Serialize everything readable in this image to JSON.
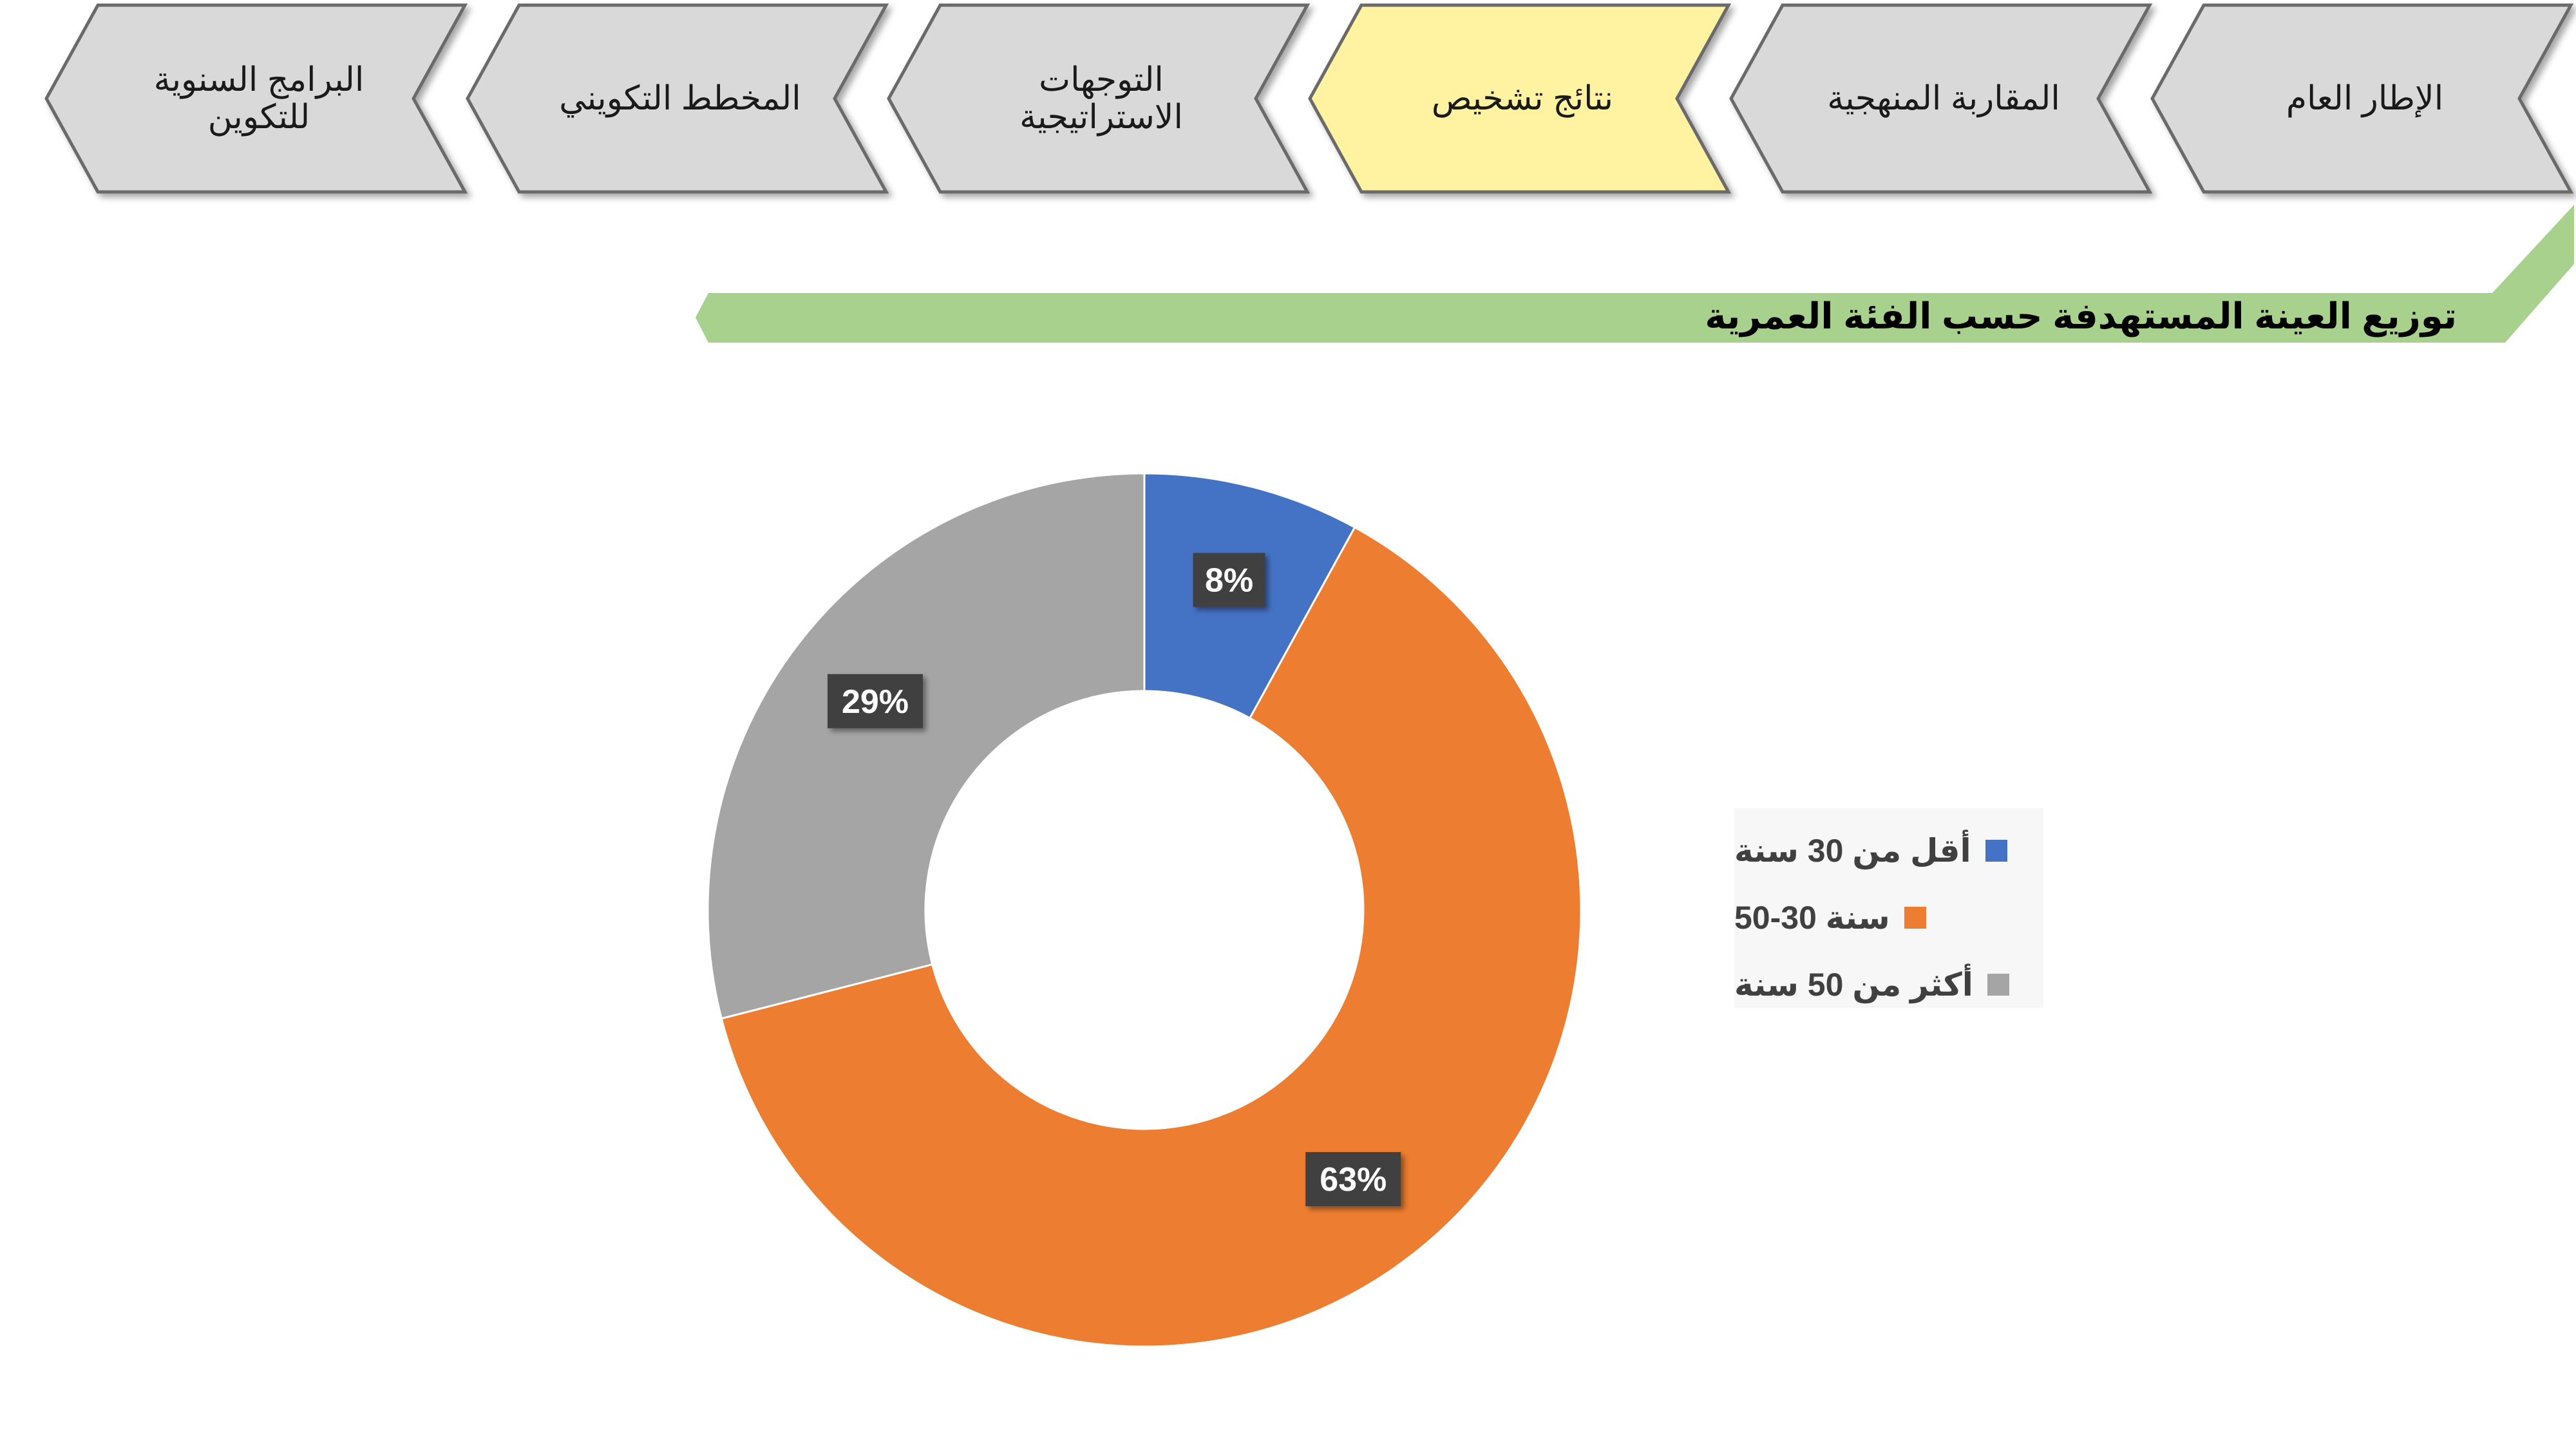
{
  "nav": {
    "steps": [
      {
        "label_lines": [
          "الإطار العام"
        ],
        "state": "normal"
      },
      {
        "label_lines": [
          "المقاربة المنهجية"
        ],
        "state": "normal"
      },
      {
        "label_lines": [
          "نتائج تشخيص"
        ],
        "state": "active"
      },
      {
        "label_lines": [
          "التوجهات",
          "الاستراتيجية"
        ],
        "state": "normal"
      },
      {
        "label_lines": [
          "المخطط التكويني"
        ],
        "state": "normal"
      },
      {
        "label_lines": [
          "البرامج السنوية",
          "للتكوين"
        ],
        "state": "normal"
      }
    ]
  },
  "banner": {
    "title": "توزيع العينة المستهدفة حسب الفئة العمرية"
  },
  "colors": {
    "chevron_fill": "#d9d9d9",
    "chevron_active_fill": "#fff2a1",
    "chevron_stroke": "#6b6b6b",
    "banner_green": "#a9d18e",
    "series_blue": "#4472c4",
    "series_orange": "#ed7d31",
    "series_gray": "#a5a5a5",
    "label_bg": "#404040"
  },
  "chart_data": {
    "type": "pie",
    "variant": "donut",
    "title": "",
    "categories": [
      "أقل من 30 سنة",
      "سنة 30-50",
      "أكثر من 50 سنة"
    ],
    "values": [
      8,
      63,
      29
    ],
    "data_labels": [
      "8%",
      "63%",
      "29%"
    ],
    "colors": [
      "#4472c4",
      "#ed7d31",
      "#a5a5a5"
    ],
    "start_angle_deg": 0,
    "direction": "clockwise",
    "legend_position": "right"
  }
}
